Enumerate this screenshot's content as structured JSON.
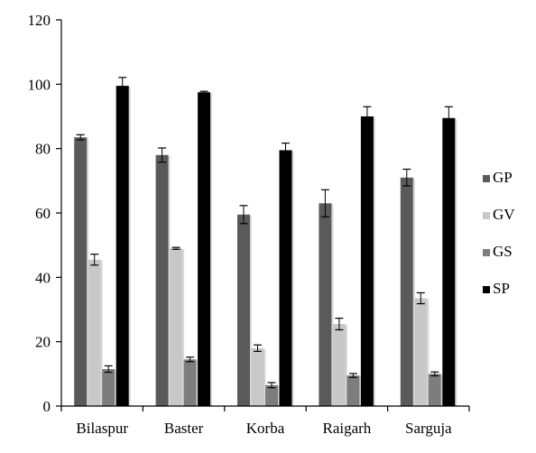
{
  "chart_data": {
    "type": "bar",
    "title": "",
    "xlabel": "",
    "ylabel": "",
    "ylim": [
      0,
      120
    ],
    "yticks": [
      0,
      20,
      40,
      60,
      80,
      100,
      120
    ],
    "grid": false,
    "legend_position": "right",
    "categories": [
      "Bilaspur",
      "Baster",
      "Korba",
      "Raigarh",
      "Sarguja"
    ],
    "series": [
      {
        "name": "GP",
        "color": "#5a5a5a",
        "values": [
          83.5,
          78,
          59.5,
          63,
          71
        ],
        "errors": [
          0.8,
          2.2,
          2.8,
          4.2,
          2.6
        ]
      },
      {
        "name": "GV",
        "color": "#c8c8c8",
        "values": [
          45.5,
          49,
          18,
          25.5,
          33.5
        ],
        "errors": [
          1.7,
          0.3,
          1.0,
          1.8,
          1.7
        ]
      },
      {
        "name": "GS",
        "color": "#7d7d7d",
        "values": [
          11.5,
          14.5,
          6.5,
          9.5,
          10
        ],
        "errors": [
          1.0,
          0.7,
          0.8,
          0.6,
          0.6
        ]
      },
      {
        "name": "SP",
        "color": "#000000",
        "values": [
          99.5,
          97.5,
          79.5,
          90,
          89.5
        ],
        "errors": [
          2.6,
          0.3,
          2.2,
          3.0,
          3.5
        ]
      }
    ]
  }
}
